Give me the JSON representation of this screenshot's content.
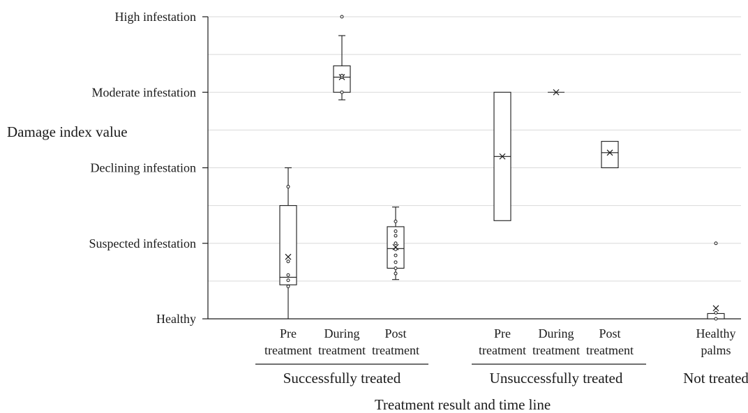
{
  "chart_data": {
    "type": "box",
    "ylabel": "Damage index value",
    "xlabel": "Treatment result and time line",
    "ylim": [
      0,
      4
    ],
    "grid": true,
    "y_ticks": [
      {
        "value": 0,
        "label": "Healthy"
      },
      {
        "value": 1,
        "label": "Suspected infestation"
      },
      {
        "value": 2,
        "label": "Declining  infestation"
      },
      {
        "value": 3,
        "label": "Moderate infestation"
      },
      {
        "value": 4,
        "label": "High infestation"
      }
    ],
    "minor_grid": [
      0.5,
      1.5,
      2.5,
      3.5
    ],
    "groups": [
      {
        "label": "Successfully treated",
        "categories": [
          0,
          1,
          2
        ]
      },
      {
        "label": "Unsuccessfully treated",
        "categories": [
          3,
          4,
          5
        ]
      },
      {
        "label": "Not treated",
        "categories": [
          6
        ]
      }
    ],
    "categories": [
      {
        "line1": "Pre",
        "line2": "treatment"
      },
      {
        "line1": "During",
        "line2": "treatment"
      },
      {
        "line1": "Post",
        "line2": "treatment"
      },
      {
        "line1": "Pre",
        "line2": "treatment"
      },
      {
        "line1": "During",
        "line2": "treatment"
      },
      {
        "line1": "Post",
        "line2": "treatment"
      },
      {
        "line1": "Healthy",
        "line2": "palms"
      }
    ],
    "boxes": [
      {
        "min": 0.0,
        "q1": 0.45,
        "median": 0.55,
        "q3": 1.5,
        "max": 2.0,
        "mean": 0.82,
        "points": [
          0.43,
          0.51,
          0.58,
          0.76,
          1.75
        ]
      },
      {
        "min": 2.9,
        "q1": 3.0,
        "median": 3.2,
        "q3": 3.35,
        "max": 3.75,
        "mean": 3.2,
        "points": [
          3.0,
          3.2,
          3.22,
          4.0
        ]
      },
      {
        "min": 0.52,
        "q1": 0.67,
        "median": 0.93,
        "q3": 1.22,
        "max": 1.48,
        "mean": 0.95,
        "points": [
          0.6,
          0.67,
          0.75,
          0.84,
          0.92,
          1.0,
          1.1,
          1.16,
          1.29
        ]
      },
      {
        "min": 1.3,
        "q1": 1.3,
        "median": 2.15,
        "q3": 3.0,
        "max": 3.0,
        "mean": 2.15,
        "points": []
      },
      {
        "min": 3.0,
        "q1": 3.0,
        "median": 3.0,
        "q3": 3.0,
        "max": 3.0,
        "mean": 3.0,
        "points": []
      },
      {
        "min": 2.0,
        "q1": 2.0,
        "median": 2.2,
        "q3": 2.35,
        "max": 2.35,
        "mean": 2.2,
        "points": []
      },
      {
        "min": 0.0,
        "q1": 0.0,
        "median": 0.0,
        "q3": 0.07,
        "max": 0.07,
        "mean": 0.14,
        "points": [
          0.0,
          0.08,
          1.0
        ]
      }
    ]
  }
}
